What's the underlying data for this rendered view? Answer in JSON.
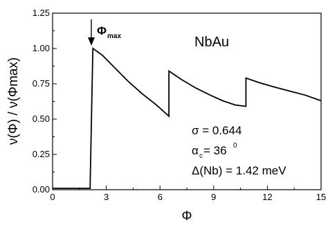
{
  "chart_data": {
    "type": "line",
    "xlabel": "Φ",
    "ylabel": "ν(Φ) / ν(Φmax)",
    "xlim": [
      0,
      15
    ],
    "ylim": [
      0,
      1.25
    ],
    "x_ticks": [
      "0",
      "3",
      "6",
      "9",
      "12",
      "15"
    ],
    "y_ticks": [
      "0.00",
      "0.25",
      "0.50",
      "0.75",
      "1.00",
      "1.25"
    ],
    "grid": false,
    "series": [
      {
        "x": [
          0.0,
          2.1,
          2.1,
          2.25,
          2.8,
          3.5,
          4.2,
          5.0,
          5.8,
          6.5,
          6.5,
          7.2,
          8.0,
          8.8,
          9.5,
          10.2,
          10.8,
          10.8,
          11.5,
          12.3,
          13.2,
          14.1,
          15.0
        ],
        "y": [
          0.01,
          0.01,
          0.04,
          1.0,
          0.95,
          0.86,
          0.77,
          0.68,
          0.6,
          0.52,
          0.84,
          0.78,
          0.72,
          0.67,
          0.63,
          0.6,
          0.59,
          0.79,
          0.76,
          0.73,
          0.7,
          0.67,
          0.63
        ]
      }
    ],
    "annotations": {
      "phi_max": "Φ",
      "phi_max_sub": "max",
      "material": "NbAu",
      "sigma": "σ = 0.644",
      "alpha": "α",
      "alpha_sub": "c",
      "alpha_value": " = 36",
      "alpha_sup": "0",
      "delta": "Δ(Nb) = 1.42 meV"
    }
  }
}
